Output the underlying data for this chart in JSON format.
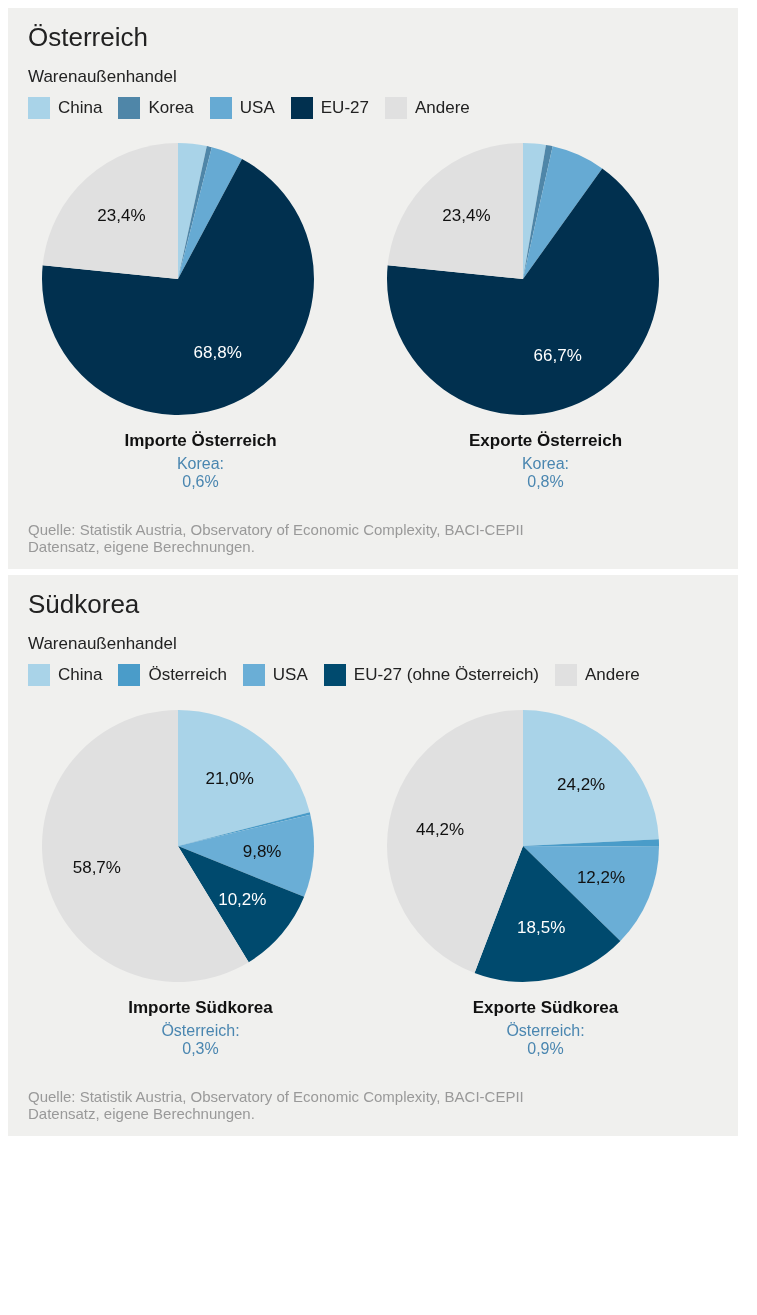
{
  "chart_data": [
    {
      "type": "pie",
      "title": "Österreich",
      "subtitle": "Warenaußenhandel",
      "legend": "top",
      "categories": [
        "China",
        "Korea",
        "USA",
        "EU-27",
        "Andere"
      ],
      "colors": [
        "#a9d3e8",
        "#4f86a8",
        "#66aad3",
        "#01304f",
        "#e0e0e0"
      ],
      "series": [
        {
          "name": "Importe Österreich",
          "values": [
            3.4,
            0.6,
            3.8,
            68.8,
            23.4
          ],
          "value_labels": [
            null,
            null,
            null,
            "68,8%",
            "23,4%"
          ]
        },
        {
          "name": "Exporte Österreich",
          "values": [
            2.7,
            0.8,
            6.4,
            66.7,
            23.4
          ],
          "value_labels": [
            null,
            null,
            null,
            "66,7%",
            "23,4%"
          ]
        }
      ],
      "annotations": [
        "Korea:\n0,6%",
        "Korea:\n0,8%",
        "Quelle: Statistik Austria, Observatory of Economic Complexity, BACI-CEPII Datensatz, eigene Berechnungen."
      ]
    },
    {
      "type": "pie",
      "title": "Südkorea",
      "subtitle": "Warenaußenhandel",
      "legend": "top",
      "categories": [
        "China",
        "Österreich",
        "USA",
        "EU-27 (ohne Österreich)",
        "Andere"
      ],
      "colors": [
        "#a9d3e8",
        "#4a9cc9",
        "#6aaed6",
        "#004a6e",
        "#e0e0e0"
      ],
      "series": [
        {
          "name": "Importe Südkorea",
          "values": [
            21.0,
            0.3,
            9.8,
            10.2,
            58.7
          ],
          "value_labels": [
            "21,0%",
            null,
            "9,8%",
            "10,2%",
            "58,7%"
          ]
        },
        {
          "name": "Exporte Südkorea",
          "values": [
            24.2,
            0.9,
            12.2,
            18.5,
            44.2
          ],
          "value_labels": [
            "24,2%",
            null,
            "12,2%",
            "18,5%",
            "44,2%"
          ]
        }
      ],
      "annotations": [
        "Österreich:\n0,3%",
        "Österreich:\n0,9%",
        "Quelle: Statistik Austria, Observatory of Economic Complexity, BACI-CEPII Datensatz, eigene Berechnungen."
      ]
    }
  ]
}
